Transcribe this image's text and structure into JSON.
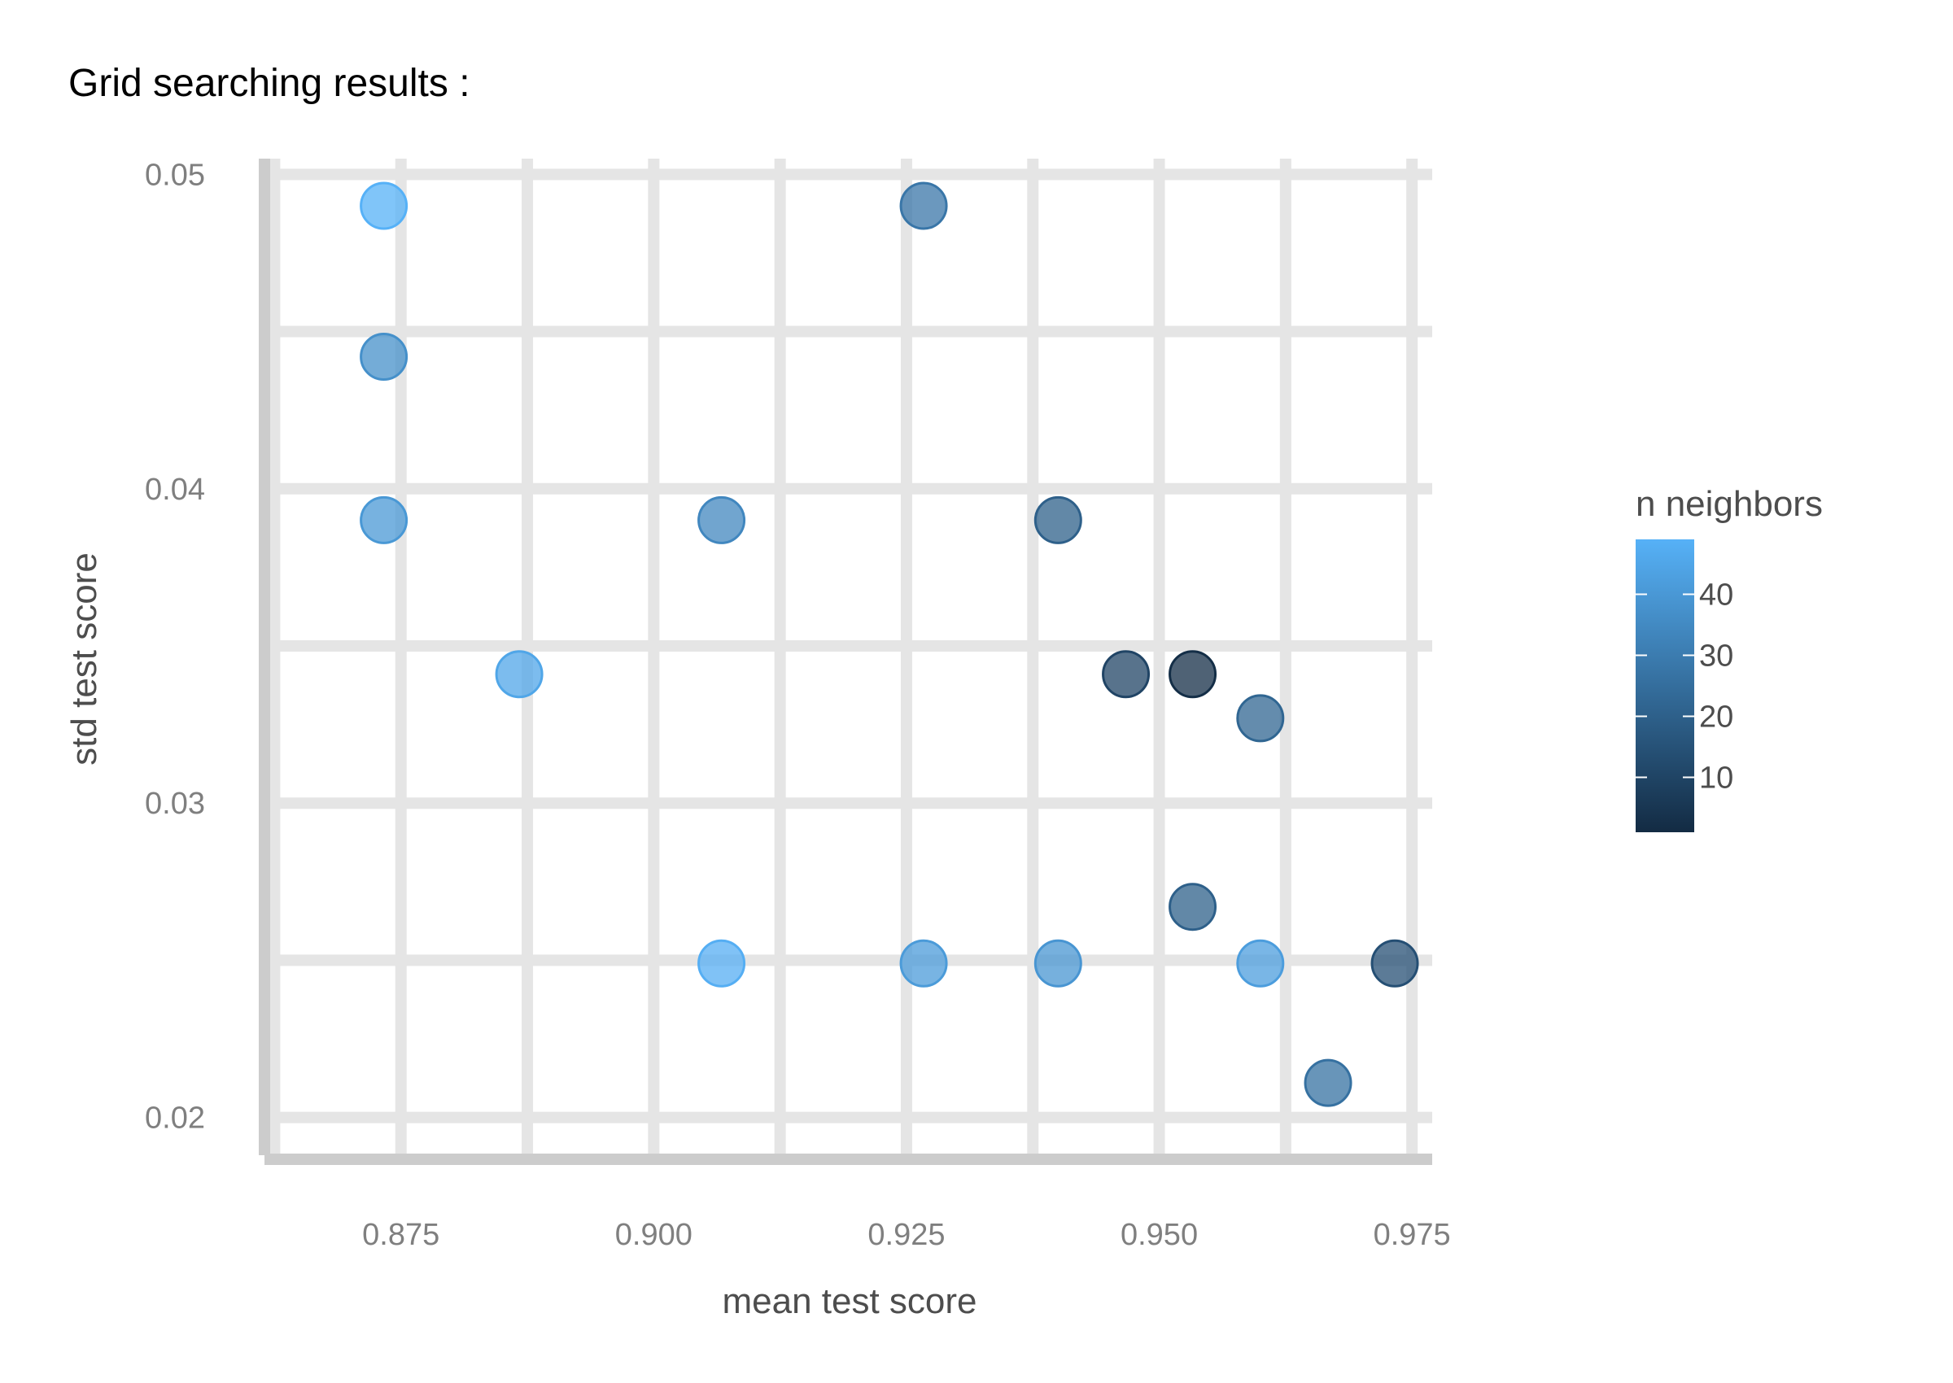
{
  "chart_data": {
    "type": "scatter",
    "title": "Grid searching results :",
    "xlabel": "mean test score",
    "ylabel": "std test score",
    "xlim": [
      0.8615,
      0.977
    ],
    "ylim": [
      0.0188,
      0.0505
    ],
    "xticks": [
      0.875,
      0.9,
      0.925,
      0.95,
      0.975
    ],
    "xtick_labels": [
      "0.875",
      "0.900",
      "0.925",
      "0.950",
      "0.975"
    ],
    "yticks": [
      0.02,
      0.03,
      0.04,
      0.05
    ],
    "ytick_labels": [
      "0.02",
      "0.03",
      "0.04",
      "0.05"
    ],
    "grid": true,
    "color_legend": {
      "title": "n neighbors",
      "min": 1,
      "max": 49,
      "ticks": [
        10,
        20,
        30,
        40
      ],
      "tick_labels": [
        "10",
        "20",
        "30",
        "40"
      ],
      "low_color": "#132B43",
      "high_color": "#56B1F7",
      "placement": "right"
    },
    "points": [
      {
        "x": 0.8733,
        "y": 0.049,
        "n": 49
      },
      {
        "x": 0.9267,
        "y": 0.049,
        "n": 28
      },
      {
        "x": 0.8733,
        "y": 0.0442,
        "n": 37
      },
      {
        "x": 0.8733,
        "y": 0.039,
        "n": 40
      },
      {
        "x": 0.9067,
        "y": 0.039,
        "n": 34
      },
      {
        "x": 0.94,
        "y": 0.039,
        "n": 20
      },
      {
        "x": 0.8867,
        "y": 0.0341,
        "n": 45
      },
      {
        "x": 0.9467,
        "y": 0.0341,
        "n": 10
      },
      {
        "x": 0.9533,
        "y": 0.0341,
        "n": 2
      },
      {
        "x": 0.96,
        "y": 0.0327,
        "n": 22
      },
      {
        "x": 0.9533,
        "y": 0.0267,
        "n": 20
      },
      {
        "x": 0.9067,
        "y": 0.0249,
        "n": 48
      },
      {
        "x": 0.9267,
        "y": 0.0249,
        "n": 41
      },
      {
        "x": 0.94,
        "y": 0.0249,
        "n": 39
      },
      {
        "x": 0.96,
        "y": 0.0249,
        "n": 42
      },
      {
        "x": 0.9733,
        "y": 0.0249,
        "n": 14
      },
      {
        "x": 0.9667,
        "y": 0.0211,
        "n": 26
      }
    ]
  }
}
